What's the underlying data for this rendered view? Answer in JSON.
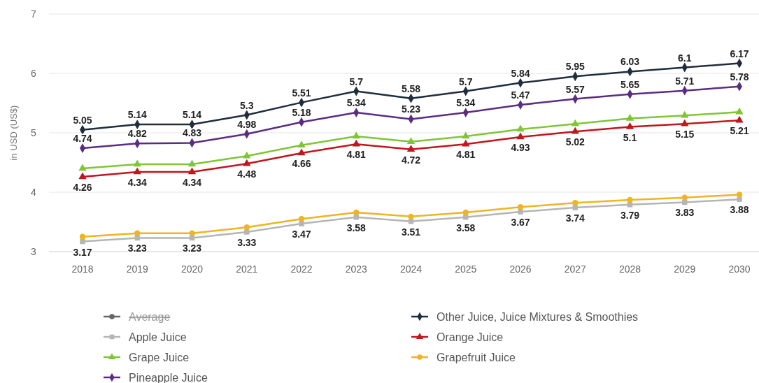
{
  "chart_data": {
    "type": "line",
    "ylabel": "in USD (US$)",
    "categories": [
      "2018",
      "2019",
      "2020",
      "2021",
      "2022",
      "2023",
      "2024",
      "2025",
      "2026",
      "2027",
      "2028",
      "2029",
      "2030"
    ],
    "ylim": [
      3,
      7
    ],
    "yticks": [
      3,
      4,
      5,
      6,
      7
    ],
    "grid": "y",
    "legend": "bottom",
    "series": [
      {
        "name": "Average",
        "color": "#666666",
        "marker": "circle",
        "values": [
          null,
          null,
          null,
          null,
          null,
          null,
          null,
          null,
          null,
          null,
          null,
          null,
          null
        ]
      },
      {
        "name": "Other Juice, Juice Mixtures & Smoothies",
        "color": "#1f2d3d",
        "marker": "diamond",
        "values": [
          5.05,
          5.14,
          5.14,
          5.3,
          5.51,
          5.7,
          5.58,
          5.7,
          5.84,
          5.95,
          6.03,
          6.1,
          6.17
        ],
        "value_labels": [
          "5.05",
          "5.14",
          "5.14",
          "5.3",
          "5.51",
          "5.7",
          "5.58",
          "5.7",
          "5.84",
          "5.95",
          "6.03",
          "6.1",
          "6.17"
        ]
      },
      {
        "name": "Apple Juice",
        "color": "#b5b5b5",
        "marker": "square",
        "values": [
          3.17,
          3.23,
          3.23,
          3.33,
          3.47,
          3.58,
          3.51,
          3.58,
          3.67,
          3.74,
          3.79,
          3.83,
          3.88
        ],
        "value_labels": [
          "3.17",
          "3.23",
          "3.23",
          "3.33",
          "3.47",
          "3.58",
          "3.51",
          "3.58",
          "3.67",
          "3.74",
          "3.79",
          "3.83",
          "3.88"
        ]
      },
      {
        "name": "Orange Juice",
        "color": "#c0161c",
        "marker": "triangle",
        "values": [
          4.26,
          4.34,
          4.34,
          4.48,
          4.66,
          4.81,
          4.72,
          4.81,
          4.93,
          5.02,
          5.1,
          5.15,
          5.21
        ],
        "value_labels": [
          "4.26",
          "4.34",
          "4.34",
          "4.48",
          "4.66",
          "4.81",
          "4.72",
          "4.81",
          "4.93",
          "5.02",
          "5.1",
          "5.15",
          "5.21"
        ]
      },
      {
        "name": "Grape Juice",
        "color": "#7ec636",
        "marker": "triangle",
        "values": [
          4.4,
          4.47,
          4.47,
          4.61,
          4.79,
          4.94,
          4.85,
          4.94,
          5.06,
          5.15,
          5.24,
          5.29,
          5.35
        ]
      },
      {
        "name": "Grapefruit Juice",
        "color": "#f0b323",
        "marker": "circle",
        "values": [
          3.25,
          3.31,
          3.31,
          3.41,
          3.55,
          3.66,
          3.59,
          3.66,
          3.75,
          3.82,
          3.87,
          3.91,
          3.96
        ]
      },
      {
        "name": "Pineapple Juice",
        "color": "#5b2d82",
        "marker": "diamond",
        "values": [
          4.74,
          4.82,
          4.83,
          4.98,
          5.18,
          5.34,
          5.23,
          5.34,
          5.47,
          5.57,
          5.65,
          5.71,
          5.78
        ],
        "value_labels": [
          "4.74",
          "4.82",
          "4.83",
          "4.98",
          "5.18",
          "5.34",
          "5.23",
          "5.34",
          "5.47",
          "5.57",
          "5.65",
          "5.71",
          "5.78"
        ]
      }
    ]
  }
}
